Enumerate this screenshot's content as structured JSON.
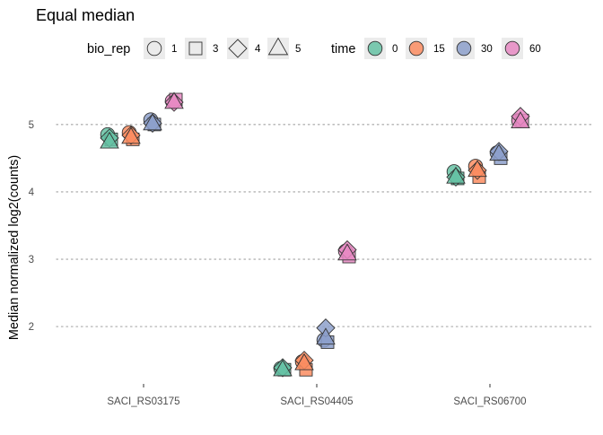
{
  "chart_data": {
    "type": "scatter",
    "title": "Equal median",
    "xlabel": "",
    "ylabel": "Median normalized log2(counts)",
    "categories": [
      "SACI_RS03175",
      "SACI_RS04405",
      "SACI_RS06700"
    ],
    "yticks": [
      2,
      3,
      4,
      5
    ],
    "ylim": [
      1.15,
      5.65
    ],
    "grid": "horizontal dotted",
    "legend_position": "top",
    "legends": [
      {
        "title": "bio_rep",
        "entries": [
          {
            "label": "1",
            "shape": "circle"
          },
          {
            "label": "3",
            "shape": "square"
          },
          {
            "label": "4",
            "shape": "diamond"
          },
          {
            "label": "5",
            "shape": "triangle"
          }
        ]
      },
      {
        "title": "time",
        "entries": [
          {
            "label": "0",
            "color": "#66c2a5"
          },
          {
            "label": "15",
            "color": "#fc8d62"
          },
          {
            "label": "30",
            "color": "#8da0cb"
          },
          {
            "label": "60",
            "color": "#e78ac3"
          }
        ]
      }
    ],
    "series": [
      {
        "name": "0",
        "color": "#66c2a5",
        "points": [
          {
            "category": "SACI_RS03175",
            "bio_rep": "1",
            "y": 4.85
          },
          {
            "category": "SACI_RS03175",
            "bio_rep": "3",
            "y": 4.78
          },
          {
            "category": "SACI_RS03175",
            "bio_rep": "4",
            "y": 4.8
          },
          {
            "category": "SACI_RS03175",
            "bio_rep": "5",
            "y": 4.75
          },
          {
            "category": "SACI_RS04405",
            "bio_rep": "1",
            "y": 1.38
          },
          {
            "category": "SACI_RS04405",
            "bio_rep": "3",
            "y": 1.36
          },
          {
            "category": "SACI_RS04405",
            "bio_rep": "4",
            "y": 1.39
          },
          {
            "category": "SACI_RS04405",
            "bio_rep": "5",
            "y": 1.37
          },
          {
            "category": "SACI_RS06700",
            "bio_rep": "1",
            "y": 4.3
          },
          {
            "category": "SACI_RS06700",
            "bio_rep": "3",
            "y": 4.2
          },
          {
            "category": "SACI_RS06700",
            "bio_rep": "4",
            "y": 4.22
          },
          {
            "category": "SACI_RS06700",
            "bio_rep": "5",
            "y": 4.23
          }
        ]
      },
      {
        "name": "15",
        "color": "#fc8d62",
        "points": [
          {
            "category": "SACI_RS03175",
            "bio_rep": "1",
            "y": 4.88
          },
          {
            "category": "SACI_RS03175",
            "bio_rep": "3",
            "y": 4.78
          },
          {
            "category": "SACI_RS03175",
            "bio_rep": "4",
            "y": 4.84
          },
          {
            "category": "SACI_RS03175",
            "bio_rep": "5",
            "y": 4.82
          },
          {
            "category": "SACI_RS04405",
            "bio_rep": "1",
            "y": 1.48
          },
          {
            "category": "SACI_RS04405",
            "bio_rep": "3",
            "y": 1.36
          },
          {
            "category": "SACI_RS04405",
            "bio_rep": "4",
            "y": 1.5
          },
          {
            "category": "SACI_RS04405",
            "bio_rep": "5",
            "y": 1.46
          },
          {
            "category": "SACI_RS06700",
            "bio_rep": "1",
            "y": 4.38
          },
          {
            "category": "SACI_RS06700",
            "bio_rep": "3",
            "y": 4.22
          },
          {
            "category": "SACI_RS06700",
            "bio_rep": "4",
            "y": 4.32
          },
          {
            "category": "SACI_RS06700",
            "bio_rep": "5",
            "y": 4.33
          }
        ]
      },
      {
        "name": "30",
        "color": "#8da0cb",
        "points": [
          {
            "category": "SACI_RS03175",
            "bio_rep": "1",
            "y": 5.07
          },
          {
            "category": "SACI_RS03175",
            "bio_rep": "3",
            "y": 5.0
          },
          {
            "category": "SACI_RS03175",
            "bio_rep": "4",
            "y": 5.02
          },
          {
            "category": "SACI_RS03175",
            "bio_rep": "5",
            "y": 5.02
          },
          {
            "category": "SACI_RS04405",
            "bio_rep": "1",
            "y": 1.8
          },
          {
            "category": "SACI_RS04405",
            "bio_rep": "3",
            "y": 1.77
          },
          {
            "category": "SACI_RS04405",
            "bio_rep": "4",
            "y": 1.98
          },
          {
            "category": "SACI_RS04405",
            "bio_rep": "5",
            "y": 1.84
          },
          {
            "category": "SACI_RS06700",
            "bio_rep": "1",
            "y": 4.58
          },
          {
            "category": "SACI_RS06700",
            "bio_rep": "3",
            "y": 4.5
          },
          {
            "category": "SACI_RS06700",
            "bio_rep": "4",
            "y": 4.6
          },
          {
            "category": "SACI_RS06700",
            "bio_rep": "5",
            "y": 4.57
          }
        ]
      },
      {
        "name": "60",
        "color": "#e78ac3",
        "points": [
          {
            "category": "SACI_RS03175",
            "bio_rep": "1",
            "y": 5.35
          },
          {
            "category": "SACI_RS03175",
            "bio_rep": "3",
            "y": 5.37
          },
          {
            "category": "SACI_RS03175",
            "bio_rep": "4",
            "y": 5.33
          },
          {
            "category": "SACI_RS03175",
            "bio_rep": "5",
            "y": 5.34
          },
          {
            "category": "SACI_RS04405",
            "bio_rep": "1",
            "y": 3.12
          },
          {
            "category": "SACI_RS04405",
            "bio_rep": "3",
            "y": 3.04
          },
          {
            "category": "SACI_RS04405",
            "bio_rep": "4",
            "y": 3.14
          },
          {
            "category": "SACI_RS04405",
            "bio_rep": "5",
            "y": 3.09
          },
          {
            "category": "SACI_RS06700",
            "bio_rep": "1",
            "y": 5.06
          },
          {
            "category": "SACI_RS06700",
            "bio_rep": "3",
            "y": 5.06
          },
          {
            "category": "SACI_RS06700",
            "bio_rep": "4",
            "y": 5.12
          },
          {
            "category": "SACI_RS06700",
            "bio_rep": "5",
            "y": 5.05
          }
        ]
      }
    ]
  }
}
